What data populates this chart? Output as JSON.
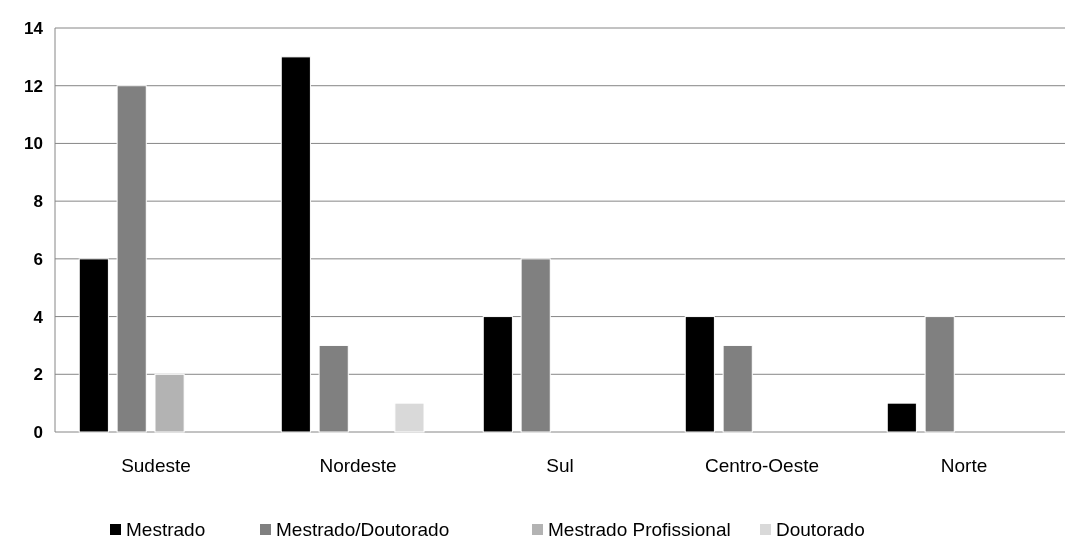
{
  "chart_data": {
    "type": "bar",
    "categories": [
      "Sudeste",
      "Nordeste",
      "Sul",
      "Centro-Oeste",
      "Norte"
    ],
    "series": [
      {
        "name": "Mestrado",
        "color": "#000000",
        "values": [
          6,
          13,
          4,
          4,
          1
        ]
      },
      {
        "name": "Mestrado/Doutorado",
        "color": "#808080",
        "values": [
          12,
          3,
          6,
          3,
          4
        ]
      },
      {
        "name": "Mestrado Profissional",
        "color": "#b3b3b3",
        "values": [
          2,
          0,
          0,
          0,
          0
        ]
      },
      {
        "name": "Doutorado",
        "color": "#d9d9d9",
        "values": [
          0,
          1,
          0,
          0,
          0
        ]
      }
    ],
    "ylim": [
      0,
      14
    ],
    "yticks": [
      0,
      2,
      4,
      6,
      8,
      10,
      12,
      14
    ],
    "grid": "y",
    "legend": "bottom"
  }
}
